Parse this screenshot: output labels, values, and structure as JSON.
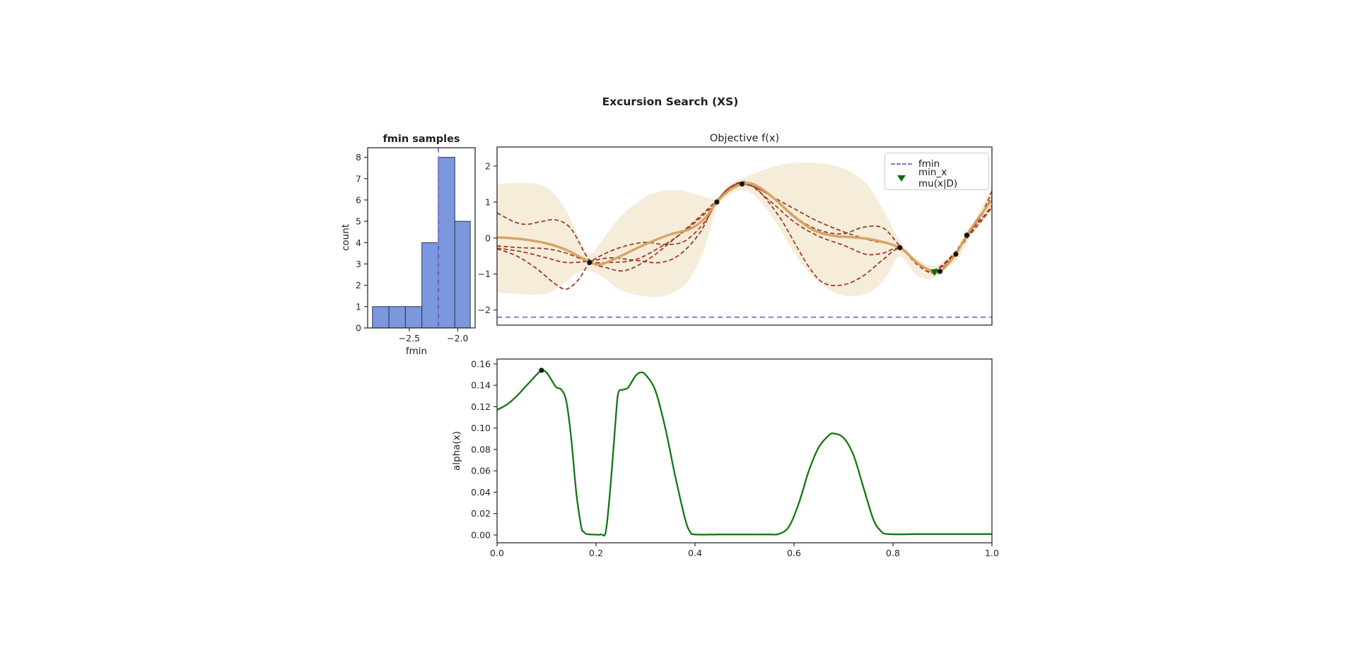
{
  "figure_title": "Excursion Search (XS)",
  "colors": {
    "histogram_bar_fill": "#7b97dd",
    "histogram_bar_edge": "#2a3550",
    "fmin_dashed": "#8673e0",
    "gp_band": "#f6ecda",
    "gp_mean": "#d6a360",
    "gp_sample": "#9e3d26",
    "observation": "#151515",
    "min_marker_green": "#0b6e0b",
    "alpha_line": "#157515",
    "axis": "#2b2b2b",
    "text": "#262626"
  },
  "chart_data": [
    {
      "id": "fmin_histogram",
      "type": "bar",
      "title": "fmin samples",
      "xlabel": "fmin",
      "ylabel": "count",
      "bin_edges": [
        -2.88,
        -2.71,
        -2.54,
        -2.37,
        -2.2,
        -2.03,
        -1.87
      ],
      "counts": [
        1,
        1,
        1,
        4,
        8,
        5
      ],
      "fmin_line_x": -2.2,
      "xlim": [
        -2.93,
        -1.82
      ],
      "ylim": [
        0,
        8.45
      ],
      "grid": false,
      "xticks": {
        "values": [
          -2.5,
          -2.0
        ],
        "labels": [
          "−2.5",
          "−2.0"
        ]
      },
      "yticks": {
        "values": [
          0,
          1,
          2,
          3,
          4,
          5,
          6,
          7,
          8
        ],
        "labels": [
          "0",
          "1",
          "2",
          "3",
          "4",
          "5",
          "6",
          "7",
          "8"
        ]
      }
    },
    {
      "id": "objective",
      "type": "line",
      "title": "Objective f(x)",
      "xlim": [
        0,
        1
      ],
      "ylim": [
        -2.42,
        2.53
      ],
      "grid": false,
      "legend_position": "upper right",
      "yticks": {
        "values": [
          -2,
          -1,
          0,
          1,
          2
        ],
        "labels": [
          "−2",
          "−1",
          "0",
          "1",
          "2"
        ]
      },
      "fmin_value": -2.2,
      "legend": [
        {
          "label": "fmin",
          "marker": "dashed-line",
          "color": "#8673e0"
        },
        {
          "label": "min_x mu(x|D)",
          "marker": "triangle-down",
          "color": "#0b6e0b"
        }
      ],
      "band_upper": [
        [
          0,
          1.5
        ],
        [
          0.04,
          1.53
        ],
        [
          0.08,
          1.5
        ],
        [
          0.11,
          1.3
        ],
        [
          0.14,
          0.75
        ],
        [
          0.165,
          0.0
        ],
        [
          0.187,
          -0.45
        ],
        [
          0.21,
          -0.1
        ],
        [
          0.25,
          0.6
        ],
        [
          0.3,
          1.15
        ],
        [
          0.34,
          1.32
        ],
        [
          0.38,
          1.3
        ],
        [
          0.41,
          1.18
        ],
        [
          0.444,
          1.12
        ],
        [
          0.47,
          1.5
        ],
        [
          0.5,
          1.68
        ],
        [
          0.54,
          1.9
        ],
        [
          0.58,
          2.05
        ],
        [
          0.63,
          2.1
        ],
        [
          0.68,
          2.02
        ],
        [
          0.72,
          1.8
        ],
        [
          0.75,
          1.45
        ],
        [
          0.78,
          0.8
        ],
        [
          0.8,
          0.25
        ],
        [
          0.814,
          -0.05
        ],
        [
          0.84,
          -0.5
        ],
        [
          0.88,
          -0.78
        ],
        [
          0.91,
          -0.55
        ],
        [
          0.93,
          -0.3
        ],
        [
          0.95,
          0.12
        ],
        [
          0.97,
          0.6
        ],
        [
          1.0,
          1.45
        ]
      ],
      "band_lower": [
        [
          0,
          -1.5
        ],
        [
          0.04,
          -1.55
        ],
        [
          0.08,
          -1.57
        ],
        [
          0.11,
          -1.5
        ],
        [
          0.14,
          -1.2
        ],
        [
          0.165,
          -0.95
        ],
        [
          0.187,
          -0.92
        ],
        [
          0.21,
          -1.05
        ],
        [
          0.25,
          -1.45
        ],
        [
          0.3,
          -1.62
        ],
        [
          0.34,
          -1.6
        ],
        [
          0.38,
          -1.3
        ],
        [
          0.41,
          -0.6
        ],
        [
          0.43,
          0.2
        ],
        [
          0.444,
          0.85
        ],
        [
          0.47,
          1.2
        ],
        [
          0.5,
          1.32
        ],
        [
          0.53,
          1.05
        ],
        [
          0.56,
          0.5
        ],
        [
          0.6,
          -0.4
        ],
        [
          0.64,
          -1.1
        ],
        [
          0.68,
          -1.5
        ],
        [
          0.72,
          -1.62
        ],
        [
          0.76,
          -1.45
        ],
        [
          0.79,
          -1.0
        ],
        [
          0.814,
          -0.52
        ],
        [
          0.85,
          -1.05
        ],
        [
          0.88,
          -1.12
        ],
        [
          0.91,
          -0.8
        ],
        [
          0.93,
          -0.6
        ],
        [
          0.95,
          -0.15
        ],
        [
          0.97,
          0.28
        ],
        [
          1.0,
          0.7
        ]
      ],
      "gp_mean": [
        [
          0,
          0.02
        ],
        [
          0.05,
          -0.03
        ],
        [
          0.1,
          -0.15
        ],
        [
          0.14,
          -0.33
        ],
        [
          0.187,
          -0.66
        ],
        [
          0.21,
          -0.73
        ],
        [
          0.25,
          -0.5
        ],
        [
          0.3,
          -0.17
        ],
        [
          0.35,
          0.1
        ],
        [
          0.39,
          0.25
        ],
        [
          0.42,
          0.55
        ],
        [
          0.444,
          1.0
        ],
        [
          0.47,
          1.33
        ],
        [
          0.5,
          1.52
        ],
        [
          0.525,
          1.45
        ],
        [
          0.56,
          1.1
        ],
        [
          0.6,
          0.6
        ],
        [
          0.64,
          0.22
        ],
        [
          0.68,
          0.06
        ],
        [
          0.72,
          0.02
        ],
        [
          0.76,
          -0.05
        ],
        [
          0.814,
          -0.27
        ],
        [
          0.85,
          -0.7
        ],
        [
          0.884,
          -0.95
        ],
        [
          0.9,
          -0.88
        ],
        [
          0.927,
          -0.45
        ],
        [
          0.949,
          0.08
        ],
        [
          0.975,
          0.6
        ],
        [
          1.0,
          1.05
        ]
      ],
      "gp_samples": [
        [
          [
            0,
            0.7
          ],
          [
            0.035,
            0.45
          ],
          [
            0.06,
            0.38
          ],
          [
            0.09,
            0.46
          ],
          [
            0.12,
            0.5
          ],
          [
            0.15,
            0.25
          ],
          [
            0.187,
            -0.62
          ],
          [
            0.22,
            -0.82
          ],
          [
            0.26,
            -0.9
          ],
          [
            0.31,
            -0.55
          ],
          [
            0.36,
            0.0
          ],
          [
            0.41,
            0.6
          ],
          [
            0.444,
            1.05
          ],
          [
            0.47,
            1.4
          ],
          [
            0.5,
            1.56
          ],
          [
            0.53,
            1.3
          ],
          [
            0.57,
            0.6
          ],
          [
            0.6,
            -0.1
          ],
          [
            0.63,
            -0.8
          ],
          [
            0.66,
            -1.25
          ],
          [
            0.7,
            -1.3
          ],
          [
            0.74,
            -1.05
          ],
          [
            0.78,
            -0.6
          ],
          [
            0.814,
            -0.3
          ],
          [
            0.85,
            -0.75
          ],
          [
            0.884,
            -0.97
          ],
          [
            0.92,
            -0.55
          ],
          [
            0.95,
            0.05
          ],
          [
            0.98,
            0.7
          ],
          [
            1.0,
            1.3
          ]
        ],
        [
          [
            0,
            -0.22
          ],
          [
            0.05,
            -0.27
          ],
          [
            0.1,
            -0.3
          ],
          [
            0.14,
            -0.42
          ],
          [
            0.187,
            -0.66
          ],
          [
            0.23,
            -0.68
          ],
          [
            0.28,
            -0.6
          ],
          [
            0.33,
            -0.25
          ],
          [
            0.37,
            0.1
          ],
          [
            0.41,
            0.55
          ],
          [
            0.444,
            1.0
          ],
          [
            0.475,
            1.42
          ],
          [
            0.5,
            1.5
          ],
          [
            0.54,
            1.28
          ],
          [
            0.58,
            0.85
          ],
          [
            0.62,
            0.42
          ],
          [
            0.66,
            0.18
          ],
          [
            0.7,
            0.12
          ],
          [
            0.74,
            0.3
          ],
          [
            0.78,
            0.28
          ],
          [
            0.814,
            -0.22
          ],
          [
            0.85,
            -0.68
          ],
          [
            0.884,
            -0.9
          ],
          [
            0.92,
            -0.5
          ],
          [
            0.95,
            0.1
          ],
          [
            0.98,
            0.55
          ],
          [
            1.0,
            0.9
          ]
        ],
        [
          [
            0,
            -0.3
          ],
          [
            0.04,
            -0.5
          ],
          [
            0.08,
            -0.85
          ],
          [
            0.115,
            -1.25
          ],
          [
            0.14,
            -1.42
          ],
          [
            0.165,
            -1.15
          ],
          [
            0.187,
            -0.7
          ],
          [
            0.22,
            -0.42
          ],
          [
            0.26,
            -0.22
          ],
          [
            0.3,
            -0.12
          ],
          [
            0.34,
            -0.18
          ],
          [
            0.38,
            -0.08
          ],
          [
            0.42,
            0.45
          ],
          [
            0.444,
            1.0
          ],
          [
            0.475,
            1.45
          ],
          [
            0.505,
            1.52
          ],
          [
            0.55,
            1.05
          ],
          [
            0.6,
            0.45
          ],
          [
            0.65,
            0.05
          ],
          [
            0.7,
            -0.2
          ],
          [
            0.745,
            -0.45
          ],
          [
            0.78,
            -0.42
          ],
          [
            0.814,
            -0.3
          ],
          [
            0.86,
            -0.8
          ],
          [
            0.884,
            -0.92
          ],
          [
            0.92,
            -0.52
          ],
          [
            0.95,
            0.0
          ],
          [
            0.98,
            0.5
          ],
          [
            1.0,
            0.85
          ]
        ],
        [
          [
            0,
            -0.28
          ],
          [
            0.05,
            -0.38
          ],
          [
            0.1,
            -0.55
          ],
          [
            0.14,
            -0.68
          ],
          [
            0.187,
            -0.64
          ],
          [
            0.23,
            -0.55
          ],
          [
            0.28,
            -0.62
          ],
          [
            0.33,
            -0.68
          ],
          [
            0.37,
            -0.45
          ],
          [
            0.41,
            0.15
          ],
          [
            0.444,
            1.02
          ],
          [
            0.48,
            1.48
          ],
          [
            0.52,
            1.42
          ],
          [
            0.56,
            1.12
          ],
          [
            0.6,
            0.82
          ],
          [
            0.64,
            0.52
          ],
          [
            0.68,
            0.28
          ],
          [
            0.72,
            0.08
          ],
          [
            0.76,
            -0.08
          ],
          [
            0.814,
            -0.25
          ],
          [
            0.85,
            -0.72
          ],
          [
            0.884,
            -0.88
          ],
          [
            0.92,
            -0.48
          ],
          [
            0.95,
            0.02
          ],
          [
            0.98,
            0.65
          ],
          [
            1.0,
            1.15
          ]
        ]
      ],
      "observations": [
        [
          0.187,
          -0.68
        ],
        [
          0.444,
          1.0
        ],
        [
          0.495,
          1.5
        ],
        [
          0.814,
          -0.27
        ],
        [
          0.895,
          -0.93
        ],
        [
          0.927,
          -0.45
        ],
        [
          0.949,
          0.08
        ]
      ],
      "min_mu_marker": [
        0.884,
        -0.95
      ]
    },
    {
      "id": "acquisition",
      "type": "line",
      "title": "",
      "xlabel": "",
      "ylabel": "alpha(x)",
      "xlim": [
        0,
        1
      ],
      "ylim": [
        -0.0073,
        0.1646
      ],
      "grid": false,
      "xticks": {
        "values": [
          0.0,
          0.2,
          0.4,
          0.6,
          0.8,
          1.0
        ],
        "labels": [
          "0.0",
          "0.2",
          "0.4",
          "0.6",
          "0.8",
          "1.0"
        ]
      },
      "yticks": {
        "values": [
          0.0,
          0.02,
          0.04,
          0.06,
          0.08,
          0.1,
          0.12,
          0.14,
          0.16
        ],
        "labels": [
          "0.00",
          "0.02",
          "0.04",
          "0.06",
          "0.08",
          "0.10",
          "0.12",
          "0.14",
          "0.16"
        ]
      },
      "curve": [
        [
          0,
          0.117
        ],
        [
          0.02,
          0.122
        ],
        [
          0.04,
          0.13
        ],
        [
          0.06,
          0.14
        ],
        [
          0.08,
          0.15
        ],
        [
          0.09,
          0.154
        ],
        [
          0.1,
          0.152
        ],
        [
          0.11,
          0.145
        ],
        [
          0.12,
          0.138
        ],
        [
          0.13,
          0.136
        ],
        [
          0.14,
          0.125
        ],
        [
          0.15,
          0.09
        ],
        [
          0.16,
          0.04
        ],
        [
          0.17,
          0.008
        ],
        [
          0.175,
          0.003
        ],
        [
          0.18,
          0.001
        ],
        [
          0.19,
          0.0005
        ],
        [
          0.21,
          0.0005
        ],
        [
          0.22,
          0.004
        ],
        [
          0.23,
          0.05
        ],
        [
          0.24,
          0.11
        ],
        [
          0.245,
          0.133
        ],
        [
          0.255,
          0.136
        ],
        [
          0.265,
          0.138
        ],
        [
          0.28,
          0.149
        ],
        [
          0.29,
          0.152
        ],
        [
          0.3,
          0.15
        ],
        [
          0.32,
          0.135
        ],
        [
          0.34,
          0.1
        ],
        [
          0.36,
          0.055
        ],
        [
          0.38,
          0.015
        ],
        [
          0.39,
          0.003
        ],
        [
          0.4,
          0.0005
        ],
        [
          0.45,
          0.0005
        ],
        [
          0.5,
          0.0005
        ],
        [
          0.55,
          0.0005
        ],
        [
          0.57,
          0.001
        ],
        [
          0.59,
          0.008
        ],
        [
          0.61,
          0.03
        ],
        [
          0.63,
          0.06
        ],
        [
          0.65,
          0.082
        ],
        [
          0.67,
          0.093
        ],
        [
          0.68,
          0.095
        ],
        [
          0.7,
          0.091
        ],
        [
          0.72,
          0.075
        ],
        [
          0.74,
          0.045
        ],
        [
          0.76,
          0.015
        ],
        [
          0.775,
          0.004
        ],
        [
          0.79,
          0.0008
        ],
        [
          0.85,
          0.0008
        ],
        [
          0.93,
          0.0008
        ],
        [
          1.0,
          0.0008
        ]
      ],
      "peak_marker": [
        0.09,
        0.154
      ]
    }
  ]
}
